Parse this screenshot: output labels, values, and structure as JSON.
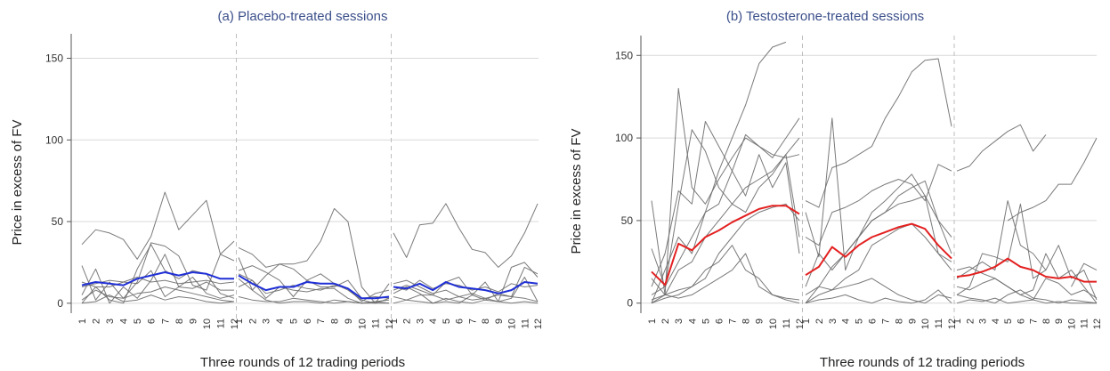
{
  "figure": {
    "title_color": "#3b4f8a",
    "grid_color": "#d9d9d9",
    "axis_color": "#555555",
    "individual_color": "#6b6b6b",
    "separator_color": "#bdbdbd",
    "period_labels": [
      "1",
      "2",
      "3",
      "4",
      "5",
      "6",
      "7",
      "8",
      "9",
      "10",
      "11",
      "12"
    ]
  },
  "chart_data": [
    {
      "type": "line",
      "title": "(a) Placebo-treated sessions",
      "ylabel": "Price in excess of FV",
      "xlabel": "Three rounds of 12 trading periods",
      "yticks": [
        0,
        50,
        100,
        150
      ],
      "ylim": [
        -5,
        165
      ],
      "rounds": 3,
      "periods_per_round": 12,
      "grid": true,
      "mean_color": "#1f2fd6",
      "rounds_data": [
        {
          "individual": [
            [
              null,
              36,
              45,
              43,
              39,
              27,
              41,
              68,
              45,
              54,
              63,
              30,
              38
            ],
            [
              null,
              23,
              2,
              13,
              3,
              13,
              37,
              35,
              29,
              11,
              8,
              30,
              26
            ],
            [
              null,
              5,
              21,
              0,
              10,
              3,
              14,
              30,
              10,
              9,
              13,
              8,
              8
            ],
            [
              null,
              10,
              12,
              14,
              13,
              12,
              20,
              4,
              10,
              16,
              6,
              3,
              5
            ],
            [
              null,
              0,
              10,
              2,
              0,
              21,
              36,
              20,
              15,
              20,
              18,
              6,
              3
            ],
            [
              null,
              2,
              8,
              4,
              3,
              6,
              7,
              10,
              8,
              6,
              4,
              2,
              1
            ],
            [
              null,
              0,
              1,
              5,
              1,
              2,
              5,
              2,
              4,
              3,
              1,
              0,
              1
            ],
            [
              null,
              13,
              10,
              10,
              13,
              16,
              13,
              14,
              12,
              13,
              14,
              12,
              13
            ]
          ],
          "mean": [
            null,
            11,
            13,
            12,
            11,
            15,
            17,
            19,
            17,
            19,
            18,
            15,
            15
          ]
        },
        {
          "individual": [
            [
              null,
              34,
              30,
              22,
              24,
              24,
              26,
              38,
              58,
              50,
              10,
              0,
              12
            ],
            [
              null,
              28,
              8,
              17,
              24,
              21,
              14,
              18,
              12,
              8,
              2,
              0,
              3
            ],
            [
              null,
              18,
              14,
              3,
              10,
              8,
              7,
              9,
              9,
              3,
              0,
              1,
              2
            ],
            [
              null,
              20,
              23,
              19,
              14,
              4,
              14,
              10,
              10,
              14,
              3,
              4,
              3
            ],
            [
              null,
              10,
              14,
              6,
              8,
              11,
              9,
              8,
              11,
              9,
              1,
              6,
              8
            ],
            [
              null,
              15,
              8,
              2,
              0,
              1,
              1,
              0,
              2,
              1,
              0,
              0,
              0
            ],
            [
              null,
              4,
              2,
              1,
              1,
              3,
              2,
              1,
              0,
              1,
              0,
              1,
              0
            ]
          ],
          "mean": [
            null,
            17,
            12,
            8,
            10,
            10,
            13,
            12,
            12,
            9,
            3,
            3,
            4
          ]
        },
        {
          "individual": [
            [
              null,
              43,
              28,
              48,
              49,
              61,
              46,
              33,
              31,
              22,
              29,
              43,
              61
            ],
            [
              null,
              12,
              14,
              10,
              6,
              8,
              4,
              6,
              3,
              1,
              22,
              25,
              16
            ],
            [
              null,
              8,
              11,
              8,
              5,
              13,
              16,
              5,
              2,
              6,
              4,
              22,
              18
            ],
            [
              null,
              6,
              10,
              6,
              0,
              1,
              0,
              5,
              13,
              1,
              3,
              16,
              1
            ],
            [
              null,
              10,
              8,
              14,
              9,
              12,
              11,
              8,
              10,
              7,
              12,
              10,
              11
            ],
            [
              null,
              4,
              2,
              5,
              5,
              2,
              4,
              2,
              3,
              5,
              4,
              3,
              1
            ],
            [
              null,
              0,
              2,
              1,
              0,
              3,
              1,
              0,
              2,
              1,
              0,
              1,
              0
            ]
          ],
          "mean": [
            null,
            10,
            9,
            12,
            8,
            13,
            10,
            9,
            8,
            6,
            8,
            13,
            12
          ]
        }
      ]
    },
    {
      "type": "line",
      "title": "(b) Testosterone-treated sessions",
      "ylabel": "Price in excess of FV",
      "xlabel": "Three rounds of 12 trading periods",
      "yticks": [
        0,
        50,
        100,
        150
      ],
      "ylim": [
        -5,
        162
      ],
      "rounds": 3,
      "periods_per_round": 12,
      "grid": true,
      "mean_color": "#e32020",
      "rounds_data": [
        {
          "individual": [
            [
              null,
              62,
              5,
              130,
              70,
              60,
              75,
              88,
              100,
              95,
              88,
              100,
              112
            ],
            [
              null,
              33,
              10,
              60,
              105,
              92,
              70,
              60,
              55,
              70,
              78,
              90,
              40
            ],
            [
              null,
              10,
              30,
              68,
              60,
              110,
              95,
              80,
              65,
              90,
              70,
              85,
              30
            ],
            [
              null,
              5,
              10,
              25,
              40,
              55,
              80,
              100,
              120,
              145,
              155,
              158,
              null
            ],
            [
              null,
              0,
              20,
              40,
              30,
              55,
              60,
              80,
              102,
              95,
              90,
              88,
              90
            ],
            [
              null,
              15,
              5,
              20,
              25,
              40,
              50,
              60,
              70,
              75,
              80,
              90,
              100
            ],
            [
              null,
              2,
              5,
              8,
              10,
              15,
              30,
              40,
              50,
              55,
              58,
              60,
              50
            ],
            [
              null,
              0,
              5,
              3,
              5,
              10,
              15,
              20,
              30,
              10,
              5,
              2,
              0
            ],
            [
              null,
              0,
              3,
              5,
              10,
              20,
              25,
              35,
              20,
              15,
              5,
              3,
              2
            ]
          ],
          "mean": [
            null,
            19,
            11,
            36,
            32,
            40,
            44,
            49,
            53,
            57,
            59,
            59,
            54
          ]
        },
        {
          "individual": [
            [
              null,
              62,
              58,
              82,
              85,
              90,
              95,
              112,
              125,
              140,
              147,
              148,
              107
            ],
            [
              null,
              55,
              28,
              112,
              20,
              40,
              55,
              62,
              70,
              78,
              65,
              50,
              40
            ],
            [
              null,
              40,
              35,
              55,
              58,
              62,
              68,
              72,
              75,
              72,
              62,
              84,
              80
            ],
            [
              null,
              10,
              30,
              20,
              30,
              40,
              50,
              55,
              65,
              70,
              74,
              50,
              30
            ],
            [
              null,
              0,
              10,
              22,
              30,
              40,
              50,
              55,
              60,
              62,
              65,
              30,
              25
            ],
            [
              null,
              5,
              10,
              8,
              15,
              20,
              35,
              40,
              45,
              48,
              40,
              30,
              20
            ],
            [
              null,
              0,
              5,
              8,
              10,
              12,
              15,
              10,
              5,
              2,
              0,
              5,
              3
            ],
            [
              null,
              0,
              2,
              3,
              5,
              2,
              0,
              3,
              1,
              0,
              2,
              8,
              0
            ]
          ],
          "mean": [
            null,
            17,
            22,
            34,
            28,
            35,
            40,
            43,
            46,
            48,
            45,
            35,
            27
          ]
        },
        {
          "individual": [
            [
              null,
              80,
              83,
              92,
              98,
              104,
              108,
              92,
              102,
              null,
              null,
              null,
              null
            ],
            [
              null,
              null,
              null,
              null,
              null,
              50,
              55,
              58,
              62,
              72,
              72,
              85,
              100
            ],
            [
              null,
              15,
              20,
              25,
              20,
              62,
              35,
              30,
              20,
              null,
              10,
              24,
              20
            ],
            [
              null,
              5,
              10,
              30,
              28,
              25,
              60,
              15,
              20,
              35,
              15,
              20,
              2
            ],
            [
              null,
              20,
              22,
              18,
              15,
              10,
              5,
              8,
              30,
              15,
              20,
              10,
              0
            ],
            [
              null,
              10,
              8,
              12,
              15,
              10,
              5,
              2,
              15,
              12,
              5,
              8,
              3
            ],
            [
              null,
              5,
              3,
              2,
              0,
              5,
              8,
              3,
              2,
              0,
              2,
              1,
              0
            ],
            [
              null,
              0,
              2,
              1,
              3,
              0,
              1,
              2,
              0,
              1,
              0,
              0,
              0
            ]
          ],
          "mean": [
            null,
            16,
            17,
            19,
            22,
            27,
            22,
            20,
            16,
            15,
            16,
            13,
            13
          ]
        }
      ]
    }
  ]
}
